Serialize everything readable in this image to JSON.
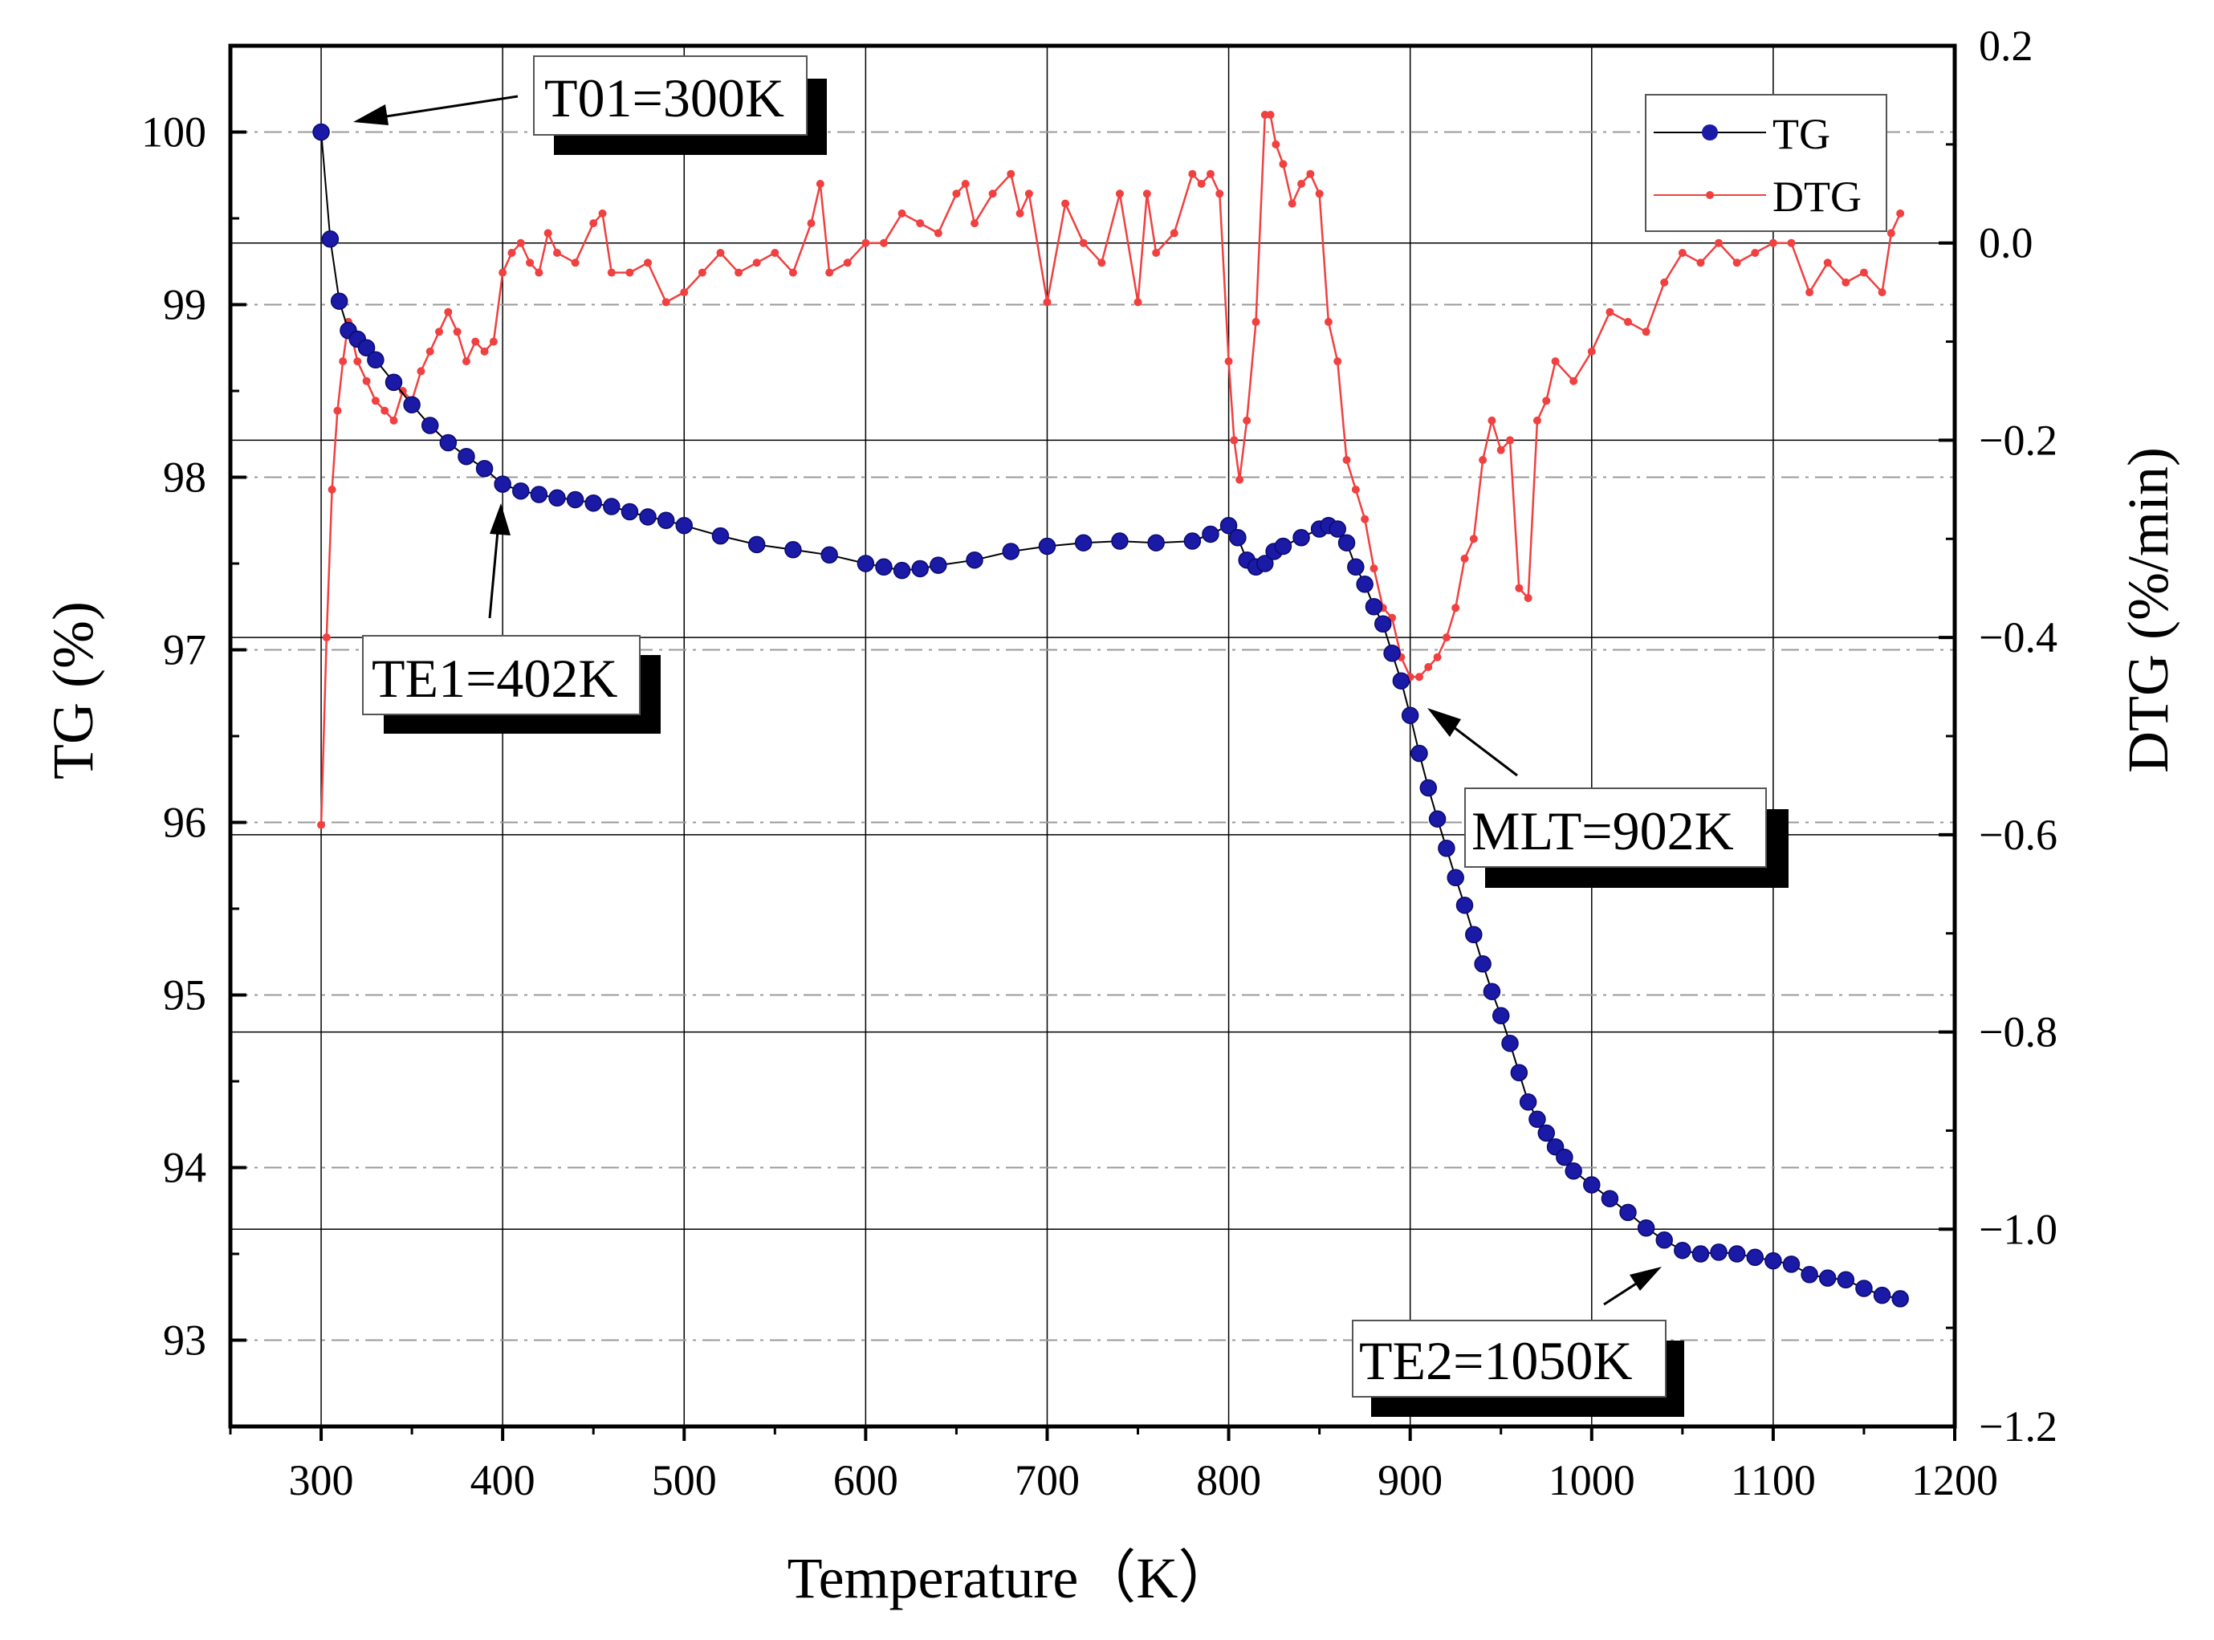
{
  "chart_data": {
    "type": "line",
    "title": "",
    "xlabel": "Temperature（K）",
    "ylabel": "TG (%)",
    "y2label": "DTG (%/min)",
    "xlim": [
      250,
      1200
    ],
    "ylim": [
      92.5,
      100.5
    ],
    "y2lim": [
      -1.2,
      0.2
    ],
    "x_ticks": [
      300,
      400,
      500,
      600,
      700,
      800,
      900,
      1000,
      1100,
      1200
    ],
    "y_ticks": [
      93,
      94,
      95,
      96,
      97,
      98,
      99,
      100
    ],
    "y2_ticks": [
      -1.2,
      -1.0,
      -0.8,
      -0.6,
      -0.4,
      -0.2,
      0.0,
      0.2
    ],
    "y2_tick_labels": [
      "−1.2",
      "−1.0",
      "−0.8",
      "−0.6",
      "−0.4",
      "−0.2",
      "0.0",
      "0.2"
    ],
    "grid": true,
    "legend_position": "top-right",
    "series": [
      {
        "name": "TG",
        "axis": "left",
        "color": "#1a1aa6",
        "marker": "circle",
        "x": [
          300,
          305,
          310,
          315,
          320,
          325,
          330,
          340,
          350,
          360,
          370,
          380,
          390,
          400,
          410,
          420,
          430,
          440,
          450,
          460,
          470,
          480,
          490,
          500,
          520,
          540,
          560,
          580,
          600,
          610,
          620,
          630,
          640,
          660,
          680,
          700,
          720,
          740,
          760,
          780,
          790,
          800,
          805,
          810,
          815,
          820,
          825,
          830,
          840,
          850,
          855,
          860,
          865,
          870,
          875,
          880,
          885,
          890,
          895,
          900,
          905,
          910,
          915,
          920,
          925,
          930,
          935,
          940,
          945,
          950,
          955,
          960,
          965,
          970,
          975,
          980,
          985,
          990,
          1000,
          1010,
          1020,
          1030,
          1040,
          1050,
          1060,
          1070,
          1080,
          1090,
          1100,
          1110,
          1120,
          1130,
          1140,
          1150,
          1160,
          1170
        ],
        "values": [
          100.0,
          99.38,
          99.02,
          98.85,
          98.8,
          98.75,
          98.68,
          98.55,
          98.42,
          98.3,
          98.2,
          98.12,
          98.05,
          97.96,
          97.92,
          97.9,
          97.88,
          97.87,
          97.85,
          97.83,
          97.8,
          97.77,
          97.75,
          97.72,
          97.66,
          97.61,
          97.58,
          97.55,
          97.5,
          97.48,
          97.46,
          97.47,
          97.49,
          97.52,
          97.57,
          97.6,
          97.62,
          97.63,
          97.62,
          97.63,
          97.67,
          97.72,
          97.65,
          97.52,
          97.48,
          97.5,
          97.57,
          97.6,
          97.65,
          97.7,
          97.72,
          97.7,
          97.62,
          97.48,
          97.38,
          97.25,
          97.15,
          96.98,
          96.82,
          96.62,
          96.4,
          96.2,
          96.02,
          95.85,
          95.68,
          95.52,
          95.35,
          95.18,
          95.02,
          94.88,
          94.72,
          94.55,
          94.38,
          94.28,
          94.2,
          94.12,
          94.06,
          93.98,
          93.9,
          93.82,
          93.74,
          93.65,
          93.58,
          93.52,
          93.5,
          93.51,
          93.5,
          93.48,
          93.46,
          93.44,
          93.38,
          93.36,
          93.35,
          93.3,
          93.26,
          93.24
        ]
      },
      {
        "name": "DTG",
        "axis": "right",
        "color": "#f04040",
        "marker": "small-dot",
        "x": [
          300,
          303,
          306,
          309,
          312,
          315,
          320,
          325,
          330,
          335,
          340,
          345,
          350,
          355,
          360,
          365,
          370,
          375,
          380,
          385,
          390,
          395,
          400,
          405,
          410,
          415,
          420,
          425,
          430,
          440,
          450,
          455,
          460,
          470,
          480,
          490,
          500,
          510,
          520,
          530,
          540,
          550,
          560,
          570,
          575,
          580,
          590,
          600,
          610,
          620,
          630,
          640,
          650,
          655,
          660,
          670,
          680,
          685,
          690,
          700,
          710,
          720,
          730,
          740,
          750,
          755,
          760,
          770,
          780,
          785,
          790,
          795,
          800,
          803,
          806,
          810,
          815,
          820,
          823,
          826,
          830,
          835,
          840,
          845,
          850,
          855,
          860,
          865,
          870,
          875,
          880,
          885,
          890,
          895,
          900,
          905,
          910,
          915,
          920,
          925,
          930,
          935,
          940,
          945,
          950,
          955,
          960,
          965,
          970,
          975,
          980,
          990,
          1000,
          1010,
          1020,
          1030,
          1040,
          1050,
          1060,
          1070,
          1080,
          1090,
          1100,
          1110,
          1120,
          1130,
          1140,
          1150,
          1160,
          1165,
          1170
        ],
        "values": [
          -0.59,
          -0.4,
          -0.25,
          -0.17,
          -0.12,
          -0.08,
          -0.12,
          -0.14,
          -0.16,
          -0.17,
          -0.18,
          -0.15,
          -0.16,
          -0.13,
          -0.11,
          -0.09,
          -0.07,
          -0.09,
          -0.12,
          -0.1,
          -0.11,
          -0.1,
          -0.03,
          -0.01,
          0.0,
          -0.02,
          -0.03,
          0.01,
          -0.01,
          -0.02,
          0.02,
          0.03,
          -0.03,
          -0.03,
          -0.02,
          -0.06,
          -0.05,
          -0.03,
          -0.01,
          -0.03,
          -0.02,
          -0.01,
          -0.03,
          0.02,
          0.06,
          -0.03,
          -0.02,
          0.0,
          0.0,
          0.03,
          0.02,
          0.01,
          0.05,
          0.06,
          0.02,
          0.05,
          0.07,
          0.03,
          0.05,
          -0.06,
          0.04,
          0.0,
          -0.02,
          0.05,
          -0.06,
          0.05,
          -0.01,
          0.01,
          0.07,
          0.06,
          0.07,
          0.05,
          -0.12,
          -0.2,
          -0.24,
          -0.18,
          -0.08,
          0.13,
          0.13,
          0.1,
          0.08,
          0.04,
          0.06,
          0.07,
          0.05,
          -0.08,
          -0.12,
          -0.22,
          -0.25,
          -0.28,
          -0.33,
          -0.37,
          -0.38,
          -0.42,
          -0.44,
          -0.44,
          -0.43,
          -0.42,
          -0.4,
          -0.37,
          -0.32,
          -0.3,
          -0.22,
          -0.18,
          -0.21,
          -0.2,
          -0.35,
          -0.36,
          -0.18,
          -0.16,
          -0.12,
          -0.14,
          -0.11,
          -0.07,
          -0.08,
          -0.09,
          -0.04,
          -0.01,
          -0.02,
          0.0,
          -0.02,
          -0.01,
          0.0,
          0.0,
          -0.05,
          -0.02,
          -0.04,
          -0.03,
          -0.05,
          0.01,
          0.03
        ]
      }
    ],
    "annotations": [
      {
        "text": "T01=300K",
        "x": 300,
        "y": 100.0,
        "axis": "left"
      },
      {
        "text": "TE1=402K",
        "x": 402,
        "y": 97.95,
        "axis": "left"
      },
      {
        "text": "MLT=902K",
        "x": 902,
        "y": -0.44,
        "axis": "right"
      },
      {
        "text": "TE2=1050K",
        "x": 1050,
        "y": 93.52,
        "axis": "left"
      }
    ]
  },
  "colors": {
    "tg_line": "#000000",
    "tg_marker": "#1a1aa6",
    "dtg": "#f04040",
    "grid": "#999999"
  }
}
